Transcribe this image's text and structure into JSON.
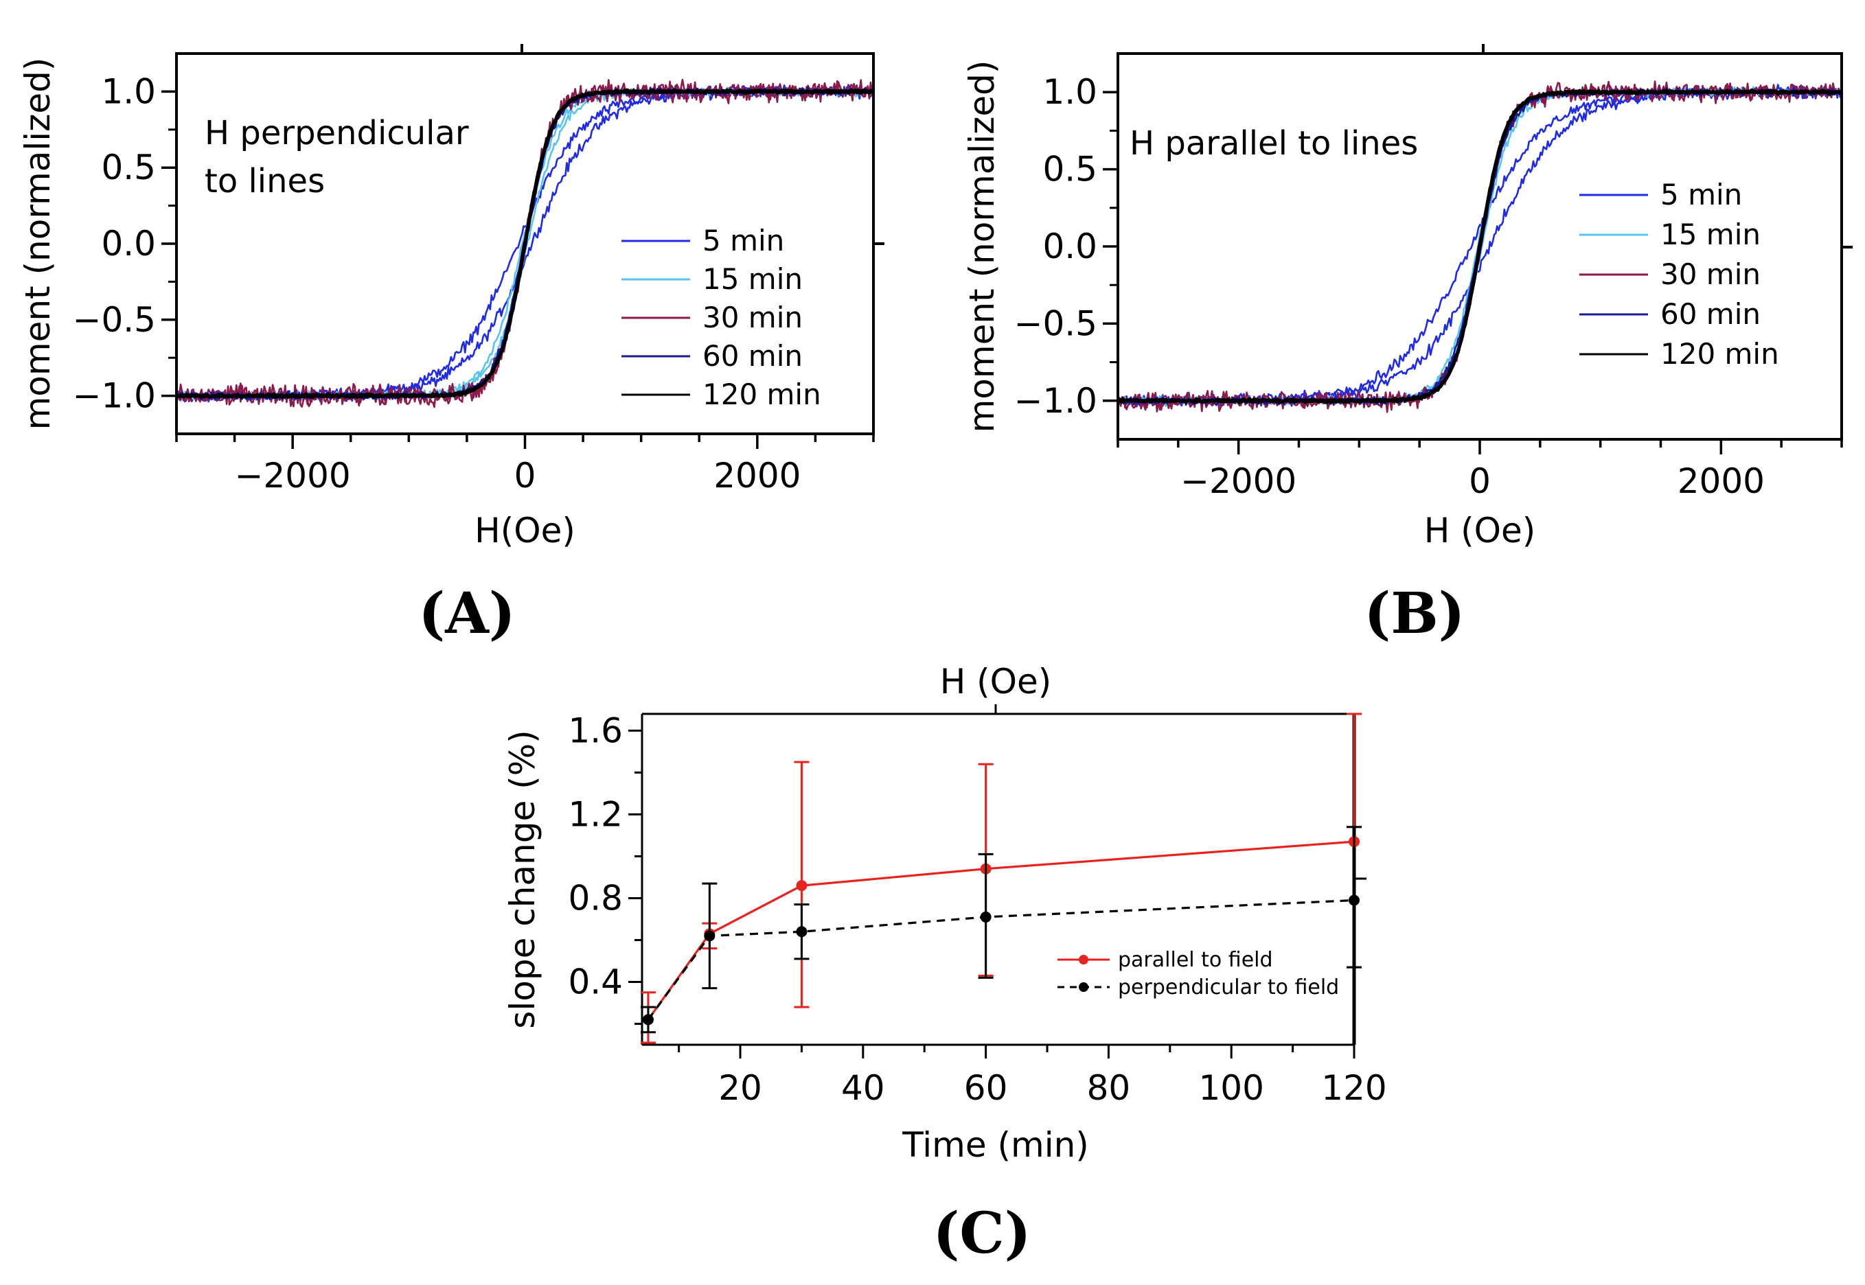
{
  "chart_data": [
    {
      "type": "line",
      "panel_label": "(A)",
      "annotation": [
        "H perpendicular",
        "to lines"
      ],
      "xlabel": "H(Oe)",
      "ylabel": "moment (normalized)",
      "xlim": [
        -3000,
        3000
      ],
      "ylim": [
        -1.25,
        1.25
      ],
      "xticks": [
        -2000,
        0,
        2000
      ],
      "xtick_labels": [
        "−2000",
        "0",
        "2000"
      ],
      "yticks": [
        -1.0,
        -0.5,
        0.0,
        0.5,
        1.0
      ],
      "ytick_labels": [
        "−1.0",
        "−0.5",
        "0.0",
        "0.5",
        "1.0"
      ],
      "legend": "right",
      "series": [
        {
          "name": "5 min",
          "color": "#1f2be8",
          "width_Oe": 560,
          "coercive_Oe": 60,
          "noise": 0.04
        },
        {
          "name": "15 min",
          "color": "#58c4f0",
          "width_Oe": 300,
          "coercive_Oe": 20,
          "noise": 0.03
        },
        {
          "name": "30 min",
          "color": "#8c1a4a",
          "width_Oe": 220,
          "coercive_Oe": 0,
          "noise": 0.07
        },
        {
          "name": "60 min",
          "color": "#1a1a9a",
          "width_Oe": 240,
          "coercive_Oe": 10,
          "noise": 0.025
        },
        {
          "name": "120 min",
          "color": "#000000",
          "width_Oe": 230,
          "coercive_Oe": 0,
          "noise": 0.01
        }
      ]
    },
    {
      "type": "line",
      "panel_label": "(B)",
      "annotation": [
        "H parallel to lines"
      ],
      "xlabel": "H (Oe)",
      "ylabel": "moment (normalized)",
      "xlim": [
        -3000,
        3000
      ],
      "ylim": [
        -1.25,
        1.25
      ],
      "xticks": [
        -2000,
        0,
        2000
      ],
      "xtick_labels": [
        "−2000",
        "0",
        "2000"
      ],
      "yticks": [
        -1.0,
        -0.5,
        0.0,
        0.5,
        1.0
      ],
      "ytick_labels": [
        "−1.0",
        "−0.5",
        "0.0",
        "0.5",
        "1.0"
      ],
      "legend": "right",
      "series": [
        {
          "name": "5 min",
          "color": "#1f2be8",
          "width_Oe": 620,
          "coercive_Oe": 80,
          "noise": 0.04
        },
        {
          "name": "15 min",
          "color": "#58c4f0",
          "width_Oe": 260,
          "coercive_Oe": 15,
          "noise": 0.03
        },
        {
          "name": "30 min",
          "color": "#8c1a4a",
          "width_Oe": 230,
          "coercive_Oe": 0,
          "noise": 0.06
        },
        {
          "name": "60 min",
          "color": "#1a1a9a",
          "width_Oe": 240,
          "coercive_Oe": 10,
          "noise": 0.025
        },
        {
          "name": "120 min",
          "color": "#000000",
          "width_Oe": 220,
          "coercive_Oe": 0,
          "noise": 0.01
        }
      ]
    },
    {
      "type": "line",
      "panel_label": "(C)",
      "top_label": "H (Oe)",
      "xlabel": "Time (min)",
      "ylabel": "slope change (%)",
      "xlim": [
        4,
        120
      ],
      "ylim": [
        0.1,
        1.68
      ],
      "xticks": [
        20,
        40,
        60,
        80,
        100,
        120
      ],
      "xtick_labels": [
        "20",
        "40",
        "60",
        "80",
        "100",
        "120"
      ],
      "yticks": [
        0.4,
        0.8,
        1.2,
        1.6
      ],
      "ytick_labels": [
        "0.4",
        "0.8",
        "1.2",
        "1.6"
      ],
      "legend": "bottom-right",
      "series": [
        {
          "name": "parallel to field",
          "color": "#e8231e",
          "dash": false,
          "x": [
            5,
            15,
            30,
            60,
            120
          ],
          "values": [
            0.22,
            0.63,
            0.86,
            0.94,
            1.07
          ],
          "err_low": [
            0.11,
            0.56,
            0.28,
            0.43,
            0.47
          ],
          "err_high": [
            0.35,
            0.68,
            1.45,
            1.44,
            1.68
          ]
        },
        {
          "name": " perpendicular to field",
          "color": "#000000",
          "dash": true,
          "x": [
            5,
            15,
            30,
            60,
            120
          ],
          "values": [
            0.22,
            0.62,
            0.64,
            0.71,
            0.79
          ],
          "err_low": [
            0.16,
            0.37,
            0.51,
            0.42,
            0.47
          ],
          "err_high": [
            0.28,
            0.87,
            0.77,
            1.01,
            1.14
          ]
        }
      ]
    }
  ]
}
